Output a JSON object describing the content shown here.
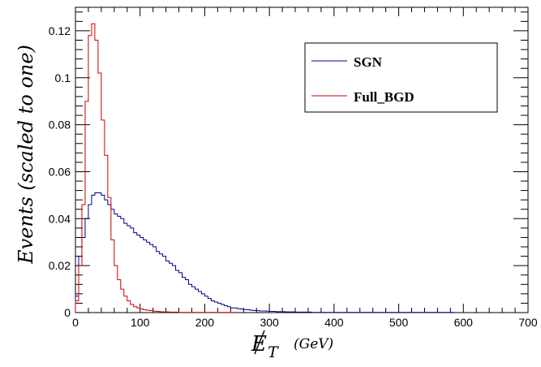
{
  "chart_data": {
    "type": "line",
    "title": "",
    "xlabel": "E_T",
    "xlabel_unit": "(GeV)",
    "ylabel": "Events (scaled to one)",
    "xlim": [
      0,
      700
    ],
    "ylim": [
      0,
      0.13
    ],
    "bin_width": 5,
    "x_ticks": [
      0,
      100,
      200,
      300,
      400,
      500,
      600,
      700
    ],
    "x_tick_labels": [
      "0",
      "100",
      "200",
      "300",
      "400",
      "500",
      "600",
      "700"
    ],
    "y_ticks": [
      0,
      0.02,
      0.04,
      0.06,
      0.08,
      0.1,
      0.12
    ],
    "y_tick_labels": [
      "0",
      "0.02",
      "0.04",
      "0.06",
      "0.08",
      "0.1",
      "0.12"
    ],
    "legend_position": "top-right",
    "series": [
      {
        "name": "SGN",
        "color": "#00008b",
        "bin_edges_start": 0,
        "values": [
          0.007,
          0.024,
          0.032,
          0.04,
          0.046,
          0.05,
          0.051,
          0.051,
          0.05,
          0.048,
          0.046,
          0.044,
          0.042,
          0.041,
          0.04,
          0.038,
          0.037,
          0.036,
          0.034,
          0.033,
          0.032,
          0.031,
          0.03,
          0.029,
          0.028,
          0.026,
          0.025,
          0.024,
          0.022,
          0.021,
          0.02,
          0.018,
          0.017,
          0.015,
          0.014,
          0.012,
          0.011,
          0.01,
          0.009,
          0.008,
          0.007,
          0.006,
          0.005,
          0.0045,
          0.004,
          0.0035,
          0.003,
          0.0025,
          0.002,
          0.002,
          0.0017,
          0.0015,
          0.0013,
          0.0012,
          0.001,
          0.0009,
          0.0008,
          0.0007,
          0.0007,
          0.0006,
          0.0005,
          0.0005,
          0.0004,
          0.0004,
          0.0004,
          0.0003,
          0.0003,
          0.0003,
          0.0002,
          0.0002,
          0.0002,
          0.0002,
          0.0002,
          0.0001,
          0.0001,
          0.0001,
          0.0001,
          0.0001,
          0.0001,
          0.0001,
          0.0001,
          0.0001,
          0.0001,
          0.0001,
          0.0001,
          0.0001,
          0.0001,
          0.0001,
          0.0001,
          0.0001,
          0.0001,
          0.0001,
          0.0001,
          0.0001,
          0.0001,
          0.0001,
          0.0001,
          0.0001,
          0.0001,
          0.0001,
          0.0001,
          0.0001,
          0.0001,
          0.0001,
          0.0001,
          0.0001,
          0.0001,
          0.0001,
          0.0001,
          0.0001,
          0.0001,
          0.0001,
          0.0001,
          0.0001,
          0.0001,
          0.0001,
          0.0001
        ]
      },
      {
        "name": "Full_BGD",
        "color": "#cc0000",
        "bin_edges_start": 0,
        "values": [
          0.005,
          0.02,
          0.046,
          0.09,
          0.118,
          0.123,
          0.116,
          0.102,
          0.082,
          0.067,
          0.049,
          0.031,
          0.02,
          0.014,
          0.01,
          0.007,
          0.005,
          0.0035,
          0.0025,
          0.002,
          0.0015,
          0.0012,
          0.001,
          0.0008,
          0.0006,
          0.0005,
          0.0004,
          0.0003,
          0.0003,
          0.0002,
          0.0002,
          0.0002,
          0.0001,
          0.0001,
          0.0001,
          0.0001,
          0.0001,
          0.0001,
          0.0001,
          0.0001,
          0.0001,
          0.0001,
          0.0001,
          0.0001,
          0.0001,
          0.0001,
          0.0001,
          0.0001,
          0.0001,
          0.0001
        ]
      }
    ]
  }
}
